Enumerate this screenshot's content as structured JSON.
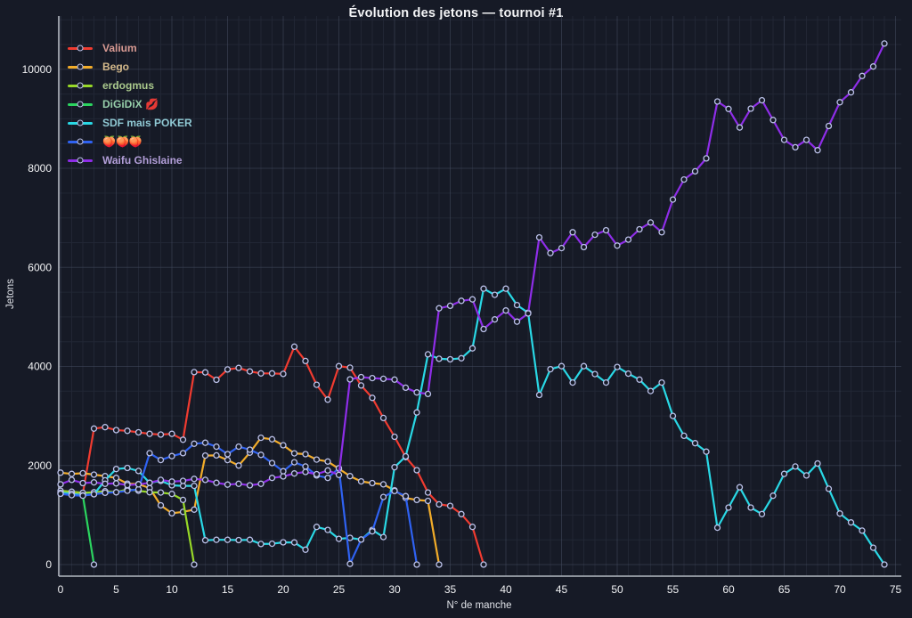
{
  "title": "Évolution des jetons — tournoi #1",
  "axes": {
    "x_label": "N° de manche",
    "y_label": "Jetons",
    "x_ticks": [
      0,
      5,
      10,
      15,
      20,
      25,
      30,
      35,
      40,
      45,
      50,
      55,
      60,
      65,
      70,
      75
    ],
    "y_ticks": [
      0,
      2000,
      4000,
      6000,
      8000,
      10000
    ]
  },
  "theme": {
    "background": "#161a26",
    "grid_minor": "#232836",
    "grid_major": "#434a5e",
    "axis_line": "#b4b9c2",
    "tick_text": "#f2f3f5",
    "marker_fill": "#161a26",
    "marker_ring": "#bcc2ea"
  },
  "chart_data": {
    "type": "line",
    "title": "Évolution des jetons — tournoi #1",
    "xlabel": "N° de manche",
    "ylabel": "Jetons",
    "xlim": [
      0,
      76
    ],
    "ylim": [
      0,
      11100
    ],
    "grid": true,
    "legend_position": "top-left",
    "x_is_round_index_from_zero": true,
    "series": [
      {
        "id": "valium",
        "name": "Valium",
        "color": "#f03b30",
        "label_color": "#d89a93",
        "values": [
          1450,
          1440,
          1430,
          2745,
          2775,
          2715,
          2700,
          2670,
          2640,
          2625,
          2640,
          2520,
          3885,
          3880,
          3730,
          3940,
          3970,
          3900,
          3860,
          3860,
          3850,
          4400,
          4110,
          3630,
          3330,
          4005,
          3975,
          3615,
          3365,
          2960,
          2580,
          2170,
          1905,
          1455,
          1215,
          1185,
          1020,
          760,
          0
        ]
      },
      {
        "id": "bego",
        "name": "Bego",
        "color": "#f2ac29",
        "label_color": "#d4b98a",
        "values": [
          1855,
          1830,
          1845,
          1815,
          1785,
          1750,
          1635,
          1625,
          1545,
          1195,
          1035,
          1065,
          1110,
          2200,
          2205,
          2110,
          2000,
          2260,
          2560,
          2530,
          2410,
          2245,
          2230,
          2120,
          2080,
          1935,
          1785,
          1680,
          1645,
          1620,
          1500,
          1345,
          1305,
          1285,
          0
        ]
      },
      {
        "id": "erdogmus",
        "name": "erdogmus",
        "color": "#97d828",
        "label_color": "#aac98c",
        "values": [
          1490,
          1470,
          1450,
          1460,
          1480,
          1460,
          1520,
          1490,
          1460,
          1455,
          1425,
          1305,
          0
        ]
      },
      {
        "id": "digidix",
        "name": "DiGiDiX 💋",
        "color": "#2bd45f",
        "label_color": "#96ceaa",
        "values": [
          1440,
          1420,
          1395,
          0
        ]
      },
      {
        "id": "sdf-mais-poker",
        "name": "SDF mais POKER",
        "color": "#29d8e5",
        "label_color": "#90c9d4",
        "values": [
          1450,
          1430,
          1400,
          1420,
          1700,
          1930,
          1950,
          1890,
          1650,
          1690,
          1600,
          1590,
          1590,
          490,
          500,
          500,
          495,
          500,
          415,
          420,
          450,
          445,
          300,
          760,
          700,
          520,
          540,
          505,
          700,
          555,
          1965,
          2185,
          3070,
          4245,
          4155,
          4145,
          4165,
          4365,
          5570,
          5445,
          5570,
          5240,
          5085,
          3425,
          3945,
          4005,
          3675,
          4005,
          3845,
          3675,
          3990,
          3855,
          3735,
          3505,
          3675,
          3000,
          2600,
          2450,
          2280,
          745,
          1150,
          1560,
          1150,
          1020,
          1390,
          1830,
          1980,
          1800,
          2040,
          1530,
          1030,
          850,
          685,
          340,
          0
        ]
      },
      {
        "id": "peaches",
        "name": "🍑🍑🍑",
        "color": "#2f62f2",
        "label_color": "#c9b394",
        "values": [
          1430,
          1400,
          1390,
          1420,
          1450,
          1460,
          1490,
          1520,
          2250,
          2110,
          2190,
          2250,
          2440,
          2460,
          2380,
          2230,
          2380,
          2320,
          2215,
          2050,
          1885,
          2065,
          1980,
          1800,
          1750,
          1945,
          15,
          505,
          670,
          1365,
          1485,
          1380,
          0
        ]
      },
      {
        "id": "waifu-ghislaine",
        "name": "Waifu Ghislaine",
        "color": "#8e2de8",
        "label_color": "#b29ed8",
        "values": [
          1620,
          1710,
          1645,
          1660,
          1630,
          1640,
          1605,
          1620,
          1650,
          1710,
          1675,
          1690,
          1730,
          1710,
          1650,
          1615,
          1630,
          1600,
          1630,
          1750,
          1780,
          1840,
          1870,
          1825,
          1900,
          1810,
          3740,
          3785,
          3765,
          3750,
          3735,
          3570,
          3475,
          3445,
          5175,
          5225,
          5325,
          5355,
          4755,
          4950,
          5130,
          4905,
          5070,
          6605,
          6290,
          6390,
          6710,
          6410,
          6660,
          6750,
          6440,
          6560,
          6770,
          6905,
          6710,
          7370,
          7775,
          7940,
          8200,
          9350,
          9200,
          8825,
          9205,
          9375,
          8975,
          8575,
          8425,
          8575,
          8365,
          8855,
          9335,
          9535,
          9865,
          10055,
          10520
        ]
      }
    ]
  }
}
